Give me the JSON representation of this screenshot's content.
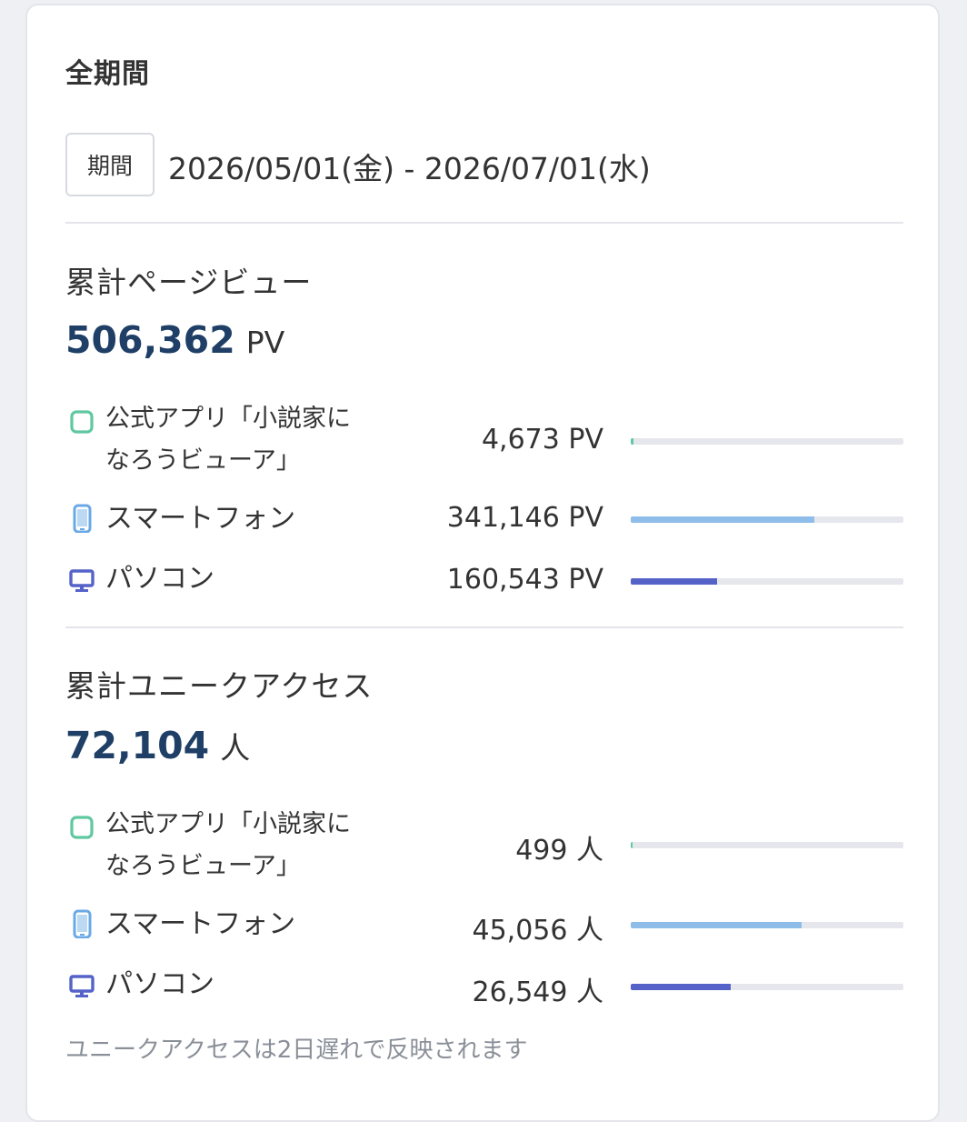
{
  "header": {
    "title": "全期間"
  },
  "period": {
    "badge_label": "期間",
    "range_text": "2026/05/01(金) - 2026/07/01(水)"
  },
  "pageviews": {
    "title": "累計ページビュー",
    "total": "506,362",
    "unit": "PV",
    "rows": [
      {
        "label_line1": "公式アプリ「小説家に",
        "label_line2": "なろうビューア」",
        "value": "4,673 PV",
        "icon": "app-square-icon",
        "fraction": 0.009,
        "color": "#5fc8a0"
      },
      {
        "label": "スマートフォン",
        "value": "341,146 PV",
        "icon": "smartphone-icon",
        "fraction": 0.674,
        "color": "#8fbde9"
      },
      {
        "label": "パソコン",
        "value": "160,543 PV",
        "icon": "monitor-icon",
        "fraction": 0.317,
        "color": "#5563c9"
      }
    ]
  },
  "unique": {
    "title": "累計ユニークアクセス",
    "total": "72,104",
    "unit": "人",
    "rows": [
      {
        "label_line1": "公式アプリ「小説家に",
        "label_line2": "なろうビューア」",
        "value": "499 人",
        "icon": "app-square-icon",
        "fraction": 0.007,
        "color": "#5fc8a0"
      },
      {
        "label": "スマートフォン",
        "value": "45,056 人",
        "icon": "smartphone-icon",
        "fraction": 0.625,
        "color": "#8fbde9"
      },
      {
        "label": "パソコン",
        "value": "26,549 人",
        "icon": "monitor-icon",
        "fraction": 0.368,
        "color": "#5563c9"
      }
    ]
  },
  "note": "ユニークアクセスは2日遅れで反映されます"
}
